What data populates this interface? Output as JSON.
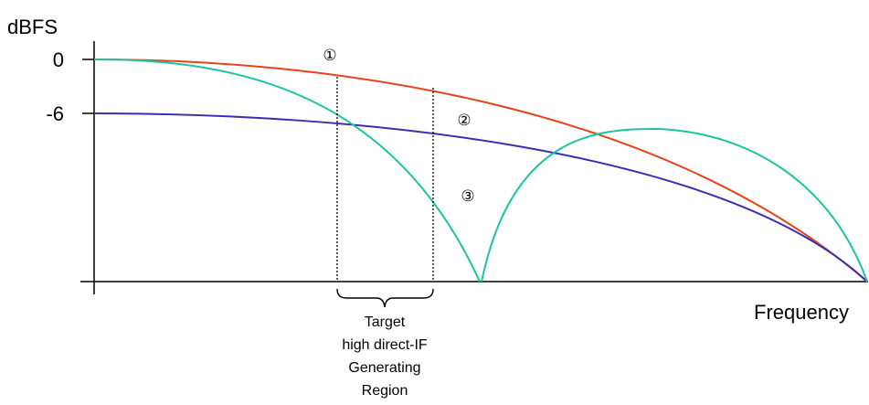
{
  "axes": {
    "y_title": "dBFS",
    "x_title": "Frequency",
    "y_ticks": [
      "0",
      "-6"
    ]
  },
  "curves": [
    {
      "label": "①",
      "color": "#e8431a"
    },
    {
      "label": "②",
      "color": "#3a2fae"
    },
    {
      "label": "③",
      "color": "#1cc4a0"
    }
  ],
  "region": {
    "lines": [
      "Target",
      "high direct-IF",
      "Generating",
      "Region"
    ]
  }
}
